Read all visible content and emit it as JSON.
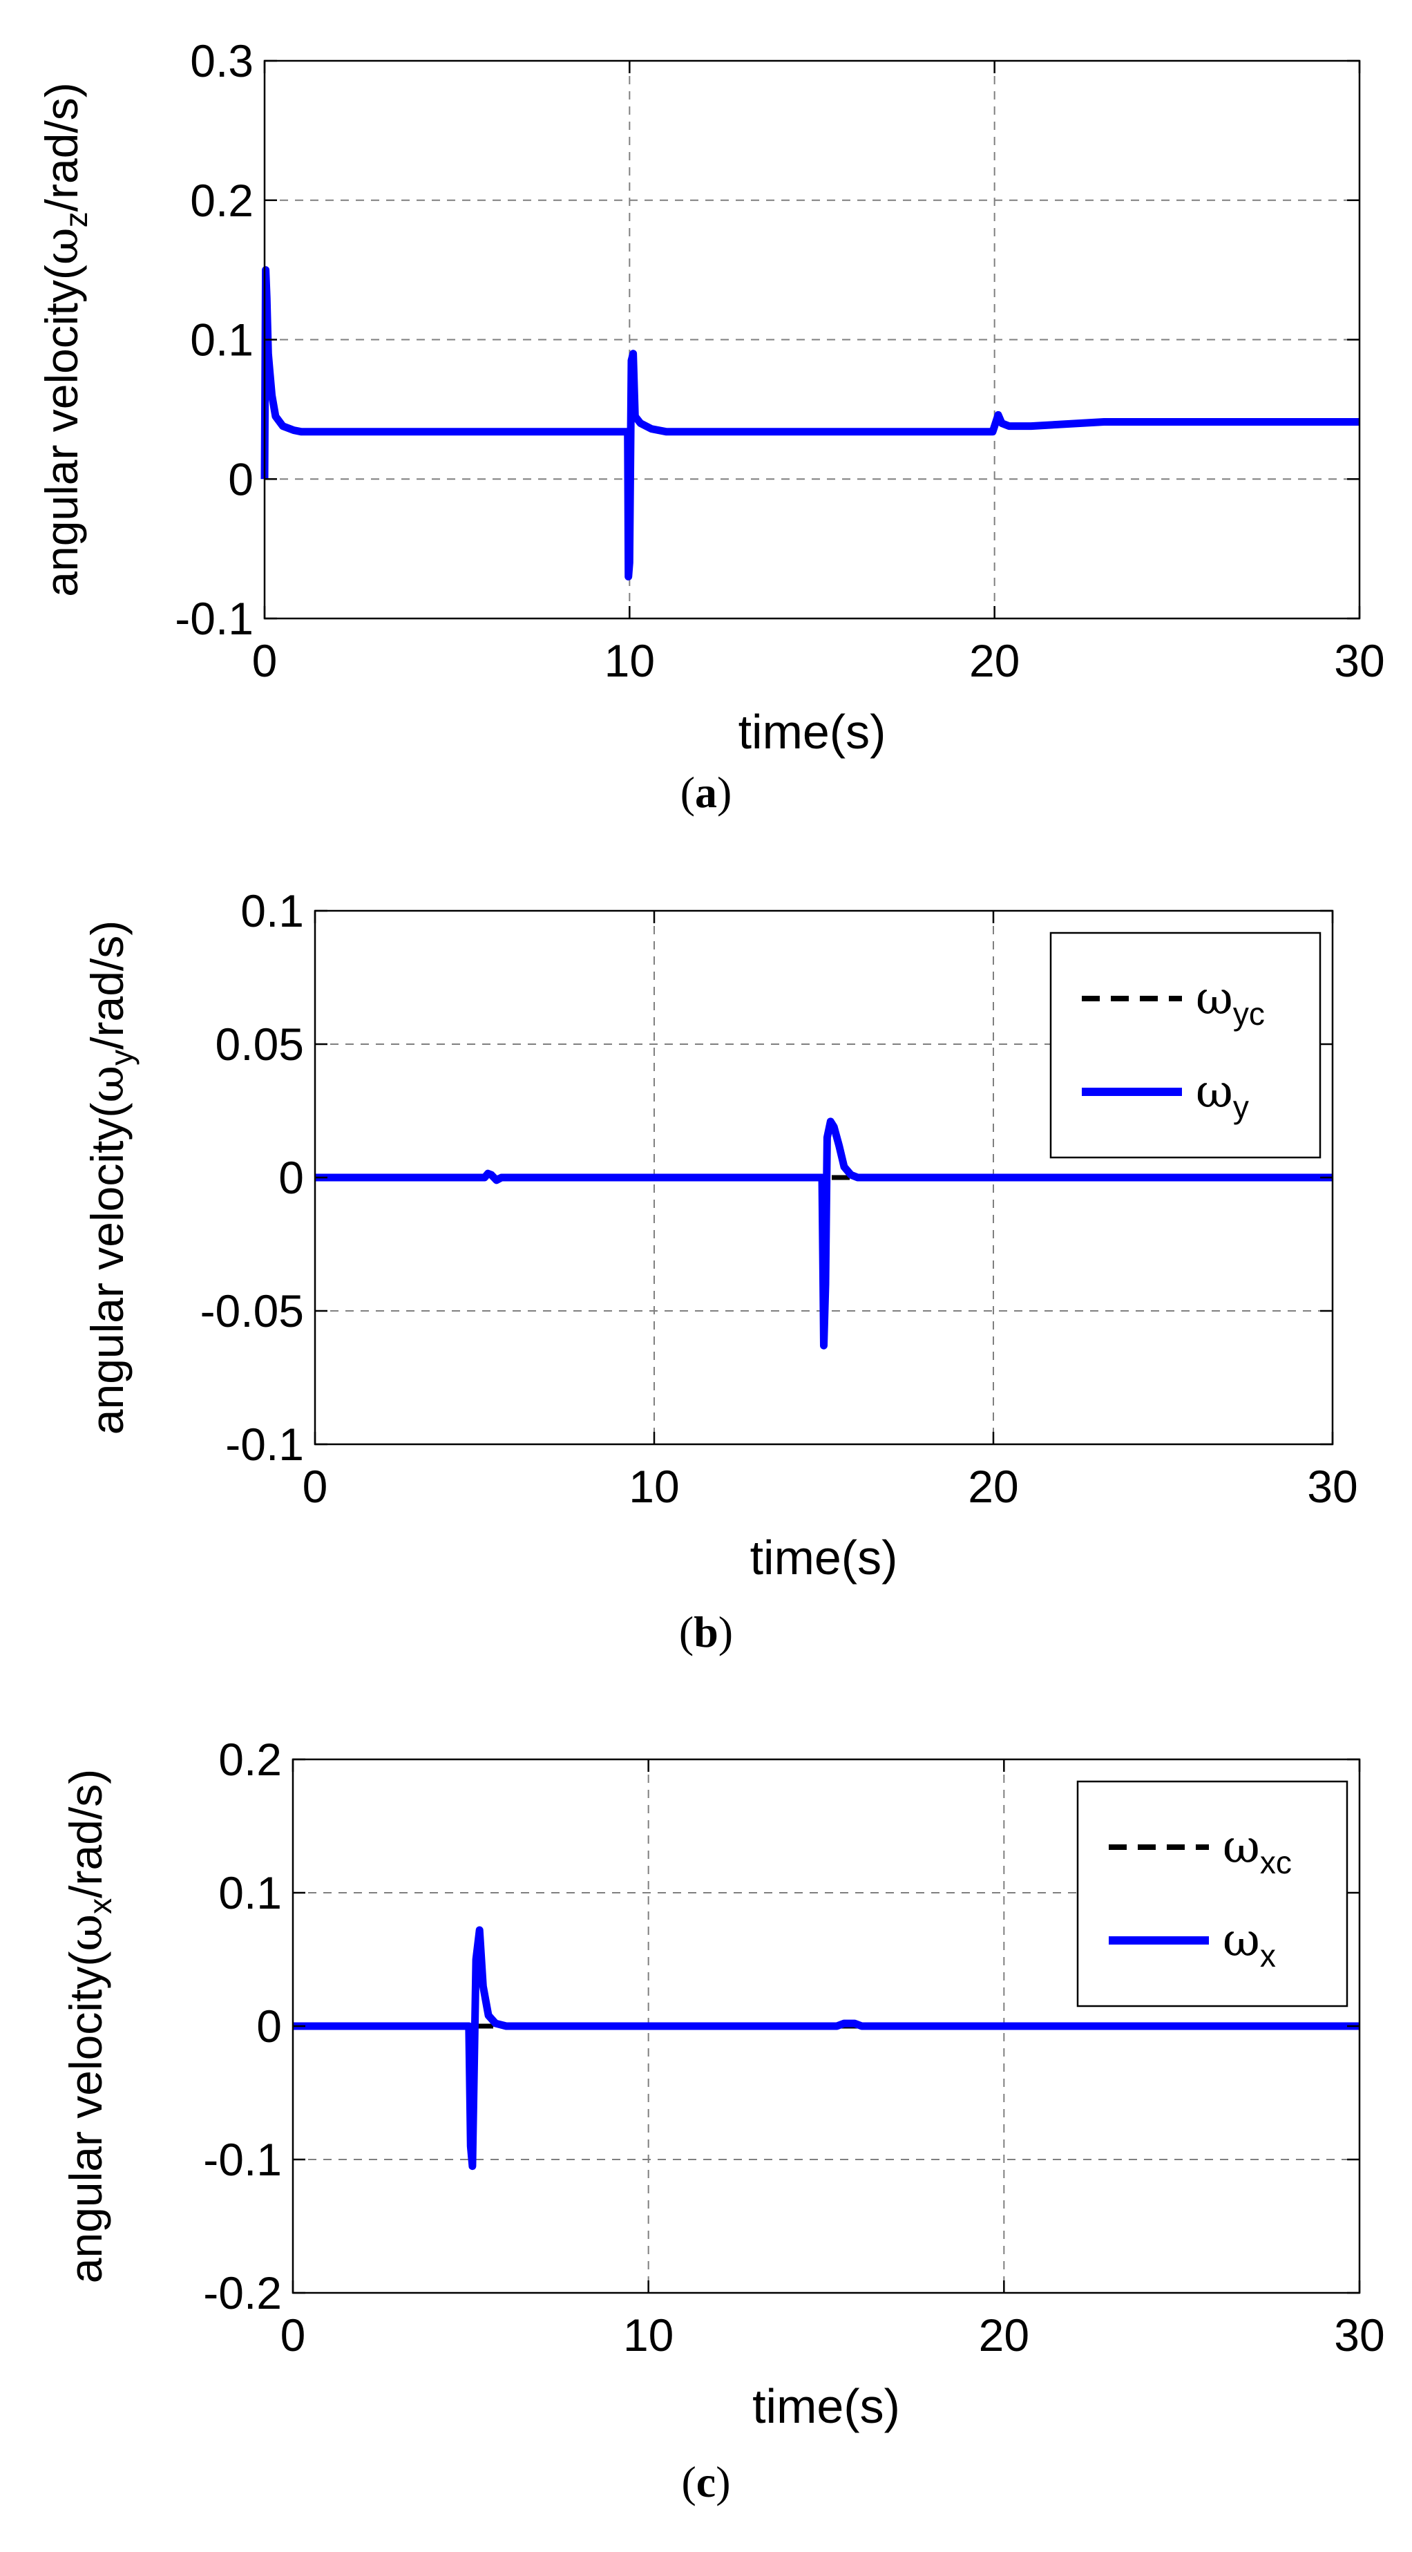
{
  "colors": {
    "series": "#0000ff",
    "reference": "#000000",
    "grid": "#7f7f7f",
    "axis": "#000000"
  },
  "chart_data": [
    {
      "type": "line",
      "caption": {
        "letter": "a",
        "open": "(",
        "close": ")"
      },
      "xlabel": "time(s)",
      "ylabel": {
        "prefix": "angular velocity(",
        "symbol": "ω",
        "sub": "z",
        "suffix": "/rad/s)"
      },
      "xlim": [
        0,
        30
      ],
      "ylim": [
        -0.1,
        0.3
      ],
      "xticks": [
        0,
        10,
        20,
        30
      ],
      "xtick_labels": [
        "0",
        "10",
        "20",
        "30"
      ],
      "yticks": [
        -0.1,
        0,
        0.1,
        0.2,
        0.3
      ],
      "ytick_labels": [
        "-0.1",
        "0",
        "0.1",
        "0.2",
        "0.3"
      ],
      "grid": true,
      "legend": null,
      "series": [
        {
          "name": "ωz",
          "style": "solid",
          "color": "#0000ff",
          "x": [
            0,
            0.03,
            0.06,
            0.1,
            0.15,
            0.2,
            0.3,
            0.5,
            0.8,
            1.0,
            5,
            9.95,
            9.97,
            10.0,
            10.05,
            10.1,
            10.15,
            10.3,
            10.6,
            11.0,
            15,
            19.95,
            20.0,
            20.1,
            20.2,
            20.4,
            21,
            23,
            30
          ],
          "y": [
            0,
            0.15,
            0.13,
            0.09,
            0.075,
            0.06,
            0.045,
            0.038,
            0.035,
            0.034,
            0.034,
            0.034,
            -0.07,
            -0.06,
            0.085,
            0.09,
            0.045,
            0.04,
            0.036,
            0.034,
            0.034,
            0.034,
            0.038,
            0.046,
            0.04,
            0.038,
            0.038,
            0.041,
            0.041
          ]
        }
      ]
    },
    {
      "type": "line",
      "caption": {
        "letter": "b",
        "open": "(",
        "close": ")"
      },
      "xlabel": "time(s)",
      "ylabel": {
        "prefix": "angular velocity(",
        "symbol": "ω",
        "sub": "y",
        "suffix": "/rad/s)"
      },
      "xlim": [
        0,
        30
      ],
      "ylim": [
        -0.1,
        0.1
      ],
      "xticks": [
        0,
        10,
        20,
        30
      ],
      "xtick_labels": [
        "0",
        "10",
        "20",
        "30"
      ],
      "yticks": [
        -0.1,
        -0.05,
        0,
        0.05,
        0.1
      ],
      "ytick_labels": [
        "-0.1",
        "-0.05",
        "0",
        "0.05",
        "0.1"
      ],
      "grid": true,
      "legend": "top-right",
      "series": [
        {
          "name": "ωyc",
          "label_symbol": "ω",
          "label_sub": "yc",
          "style": "dashed",
          "color": "#000000",
          "x": [
            0,
            30
          ],
          "y": [
            0,
            0
          ]
        },
        {
          "name": "ωy",
          "label_symbol": "ω",
          "label_sub": "y",
          "style": "solid",
          "color": "#0000ff",
          "x": [
            0,
            5.0,
            5.1,
            5.2,
            5.35,
            5.5,
            14.95,
            15.0,
            15.05,
            15.1,
            15.2,
            15.3,
            15.45,
            15.6,
            15.8,
            16.0,
            30
          ],
          "y": [
            0,
            0,
            0.0015,
            0.001,
            -0.001,
            0,
            0,
            -0.063,
            -0.04,
            0.015,
            0.021,
            0.019,
            0.012,
            0.004,
            0.001,
            0,
            0
          ]
        }
      ]
    },
    {
      "type": "line",
      "caption": {
        "letter": "c",
        "open": "(",
        "close": ")"
      },
      "xlabel": "time(s)",
      "ylabel": {
        "prefix": "angular velocity(",
        "symbol": "ω",
        "sub": "x",
        "suffix": "/rad/s)"
      },
      "xlim": [
        0,
        30
      ],
      "ylim": [
        -0.2,
        0.2
      ],
      "xticks": [
        0,
        10,
        20,
        30
      ],
      "xtick_labels": [
        "0",
        "10",
        "20",
        "30"
      ],
      "yticks": [
        -0.2,
        -0.1,
        0,
        0.1,
        0.2
      ],
      "ytick_labels": [
        "-0.2",
        "-0.1",
        "0",
        "0.1",
        "0.2"
      ],
      "grid": true,
      "legend": "top-right",
      "series": [
        {
          "name": "ωxc",
          "label_symbol": "ω",
          "label_sub": "xc",
          "style": "dashed",
          "color": "#000000",
          "x": [
            0,
            30
          ],
          "y": [
            0,
            0
          ]
        },
        {
          "name": "ωx",
          "label_symbol": "ω",
          "label_sub": "x",
          "style": "solid",
          "color": "#0000ff",
          "x": [
            0,
            4.95,
            5.0,
            5.05,
            5.15,
            5.25,
            5.35,
            5.5,
            5.7,
            6.0,
            15.3,
            15.5,
            15.8,
            16.0,
            30
          ],
          "y": [
            0,
            0,
            -0.09,
            -0.105,
            0.05,
            0.072,
            0.03,
            0.008,
            0.002,
            0,
            0,
            0.002,
            0.002,
            0,
            0
          ]
        }
      ]
    }
  ]
}
